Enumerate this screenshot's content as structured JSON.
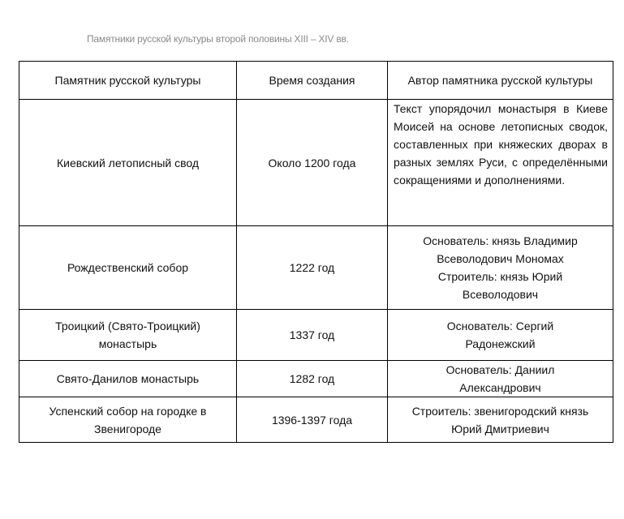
{
  "title": "Памятники русской культуры второй половины XIII – XIV вв.",
  "headers": [
    "Памятник русской культуры",
    "Время создания",
    "Автор памятника русской культуры"
  ],
  "rows": [
    {
      "monument": "Киевский летописный свод",
      "time": "Около 1200 года",
      "author": "Текст упорядочил монастыря в Киеве Моисей на основе летописных сводок, составленных при княжеских дворах в разных землях Руси, с определёнными сокращениями и дополнениями."
    },
    {
      "monument": "Рождественский собор",
      "time": "1222 год",
      "author": "Основатель: князь Владимир Всеволодович Мономах Строитель: князь Юрий Всеволодович"
    },
    {
      "monument": "Троицкий (Свято-Троицкий) монастырь",
      "time": "1337 год",
      "author": "Основатель: Сергий Радонежский"
    },
    {
      "monument": "Свято-Данилов монастырь",
      "time": "1282 год",
      "author": "Основатель: Даниил Александрович"
    },
    {
      "monument": "Успенский собор на городке в Звенигороде",
      "time": "1396-1397 года",
      "author": "Строитель:  звенигородский князь Юрий Дмитриевич"
    }
  ]
}
